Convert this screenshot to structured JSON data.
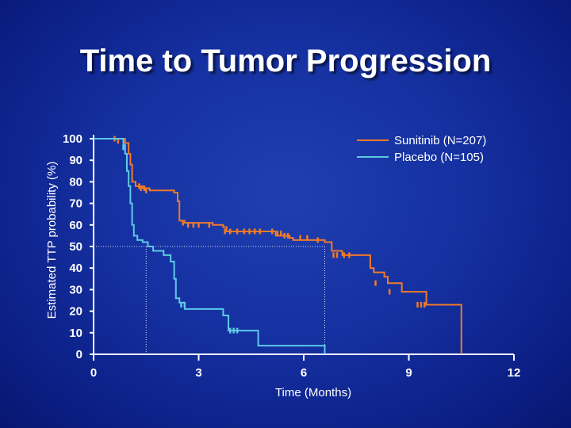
{
  "chart_data": {
    "type": "line",
    "title": "Time to Tumor Progression",
    "xlabel": "Time (Months)",
    "ylabel": "Estimated TTP probability (%)",
    "xlim": [
      0,
      12
    ],
    "ylim": [
      0,
      100
    ],
    "xticks": [
      0,
      3,
      6,
      9,
      12
    ],
    "yticks": [
      0,
      10,
      20,
      30,
      40,
      50,
      60,
      70,
      80,
      90,
      100
    ],
    "legend_position": "top-right",
    "median_lines": [
      {
        "series": "Placebo (N=105)",
        "x": 1.5,
        "y": 50
      },
      {
        "series": "Sunitinib (N=207)",
        "x": 6.6,
        "y": 50
      }
    ],
    "series": [
      {
        "name": "Sunitinib (N=207)",
        "color": "#f07a28",
        "step_points": [
          [
            0,
            100
          ],
          [
            0.6,
            100
          ],
          [
            0.9,
            98
          ],
          [
            1.0,
            93
          ],
          [
            1.05,
            88
          ],
          [
            1.1,
            80
          ],
          [
            1.2,
            78
          ],
          [
            1.4,
            77
          ],
          [
            1.6,
            76
          ],
          [
            2.2,
            76
          ],
          [
            2.3,
            75
          ],
          [
            2.4,
            71
          ],
          [
            2.45,
            62
          ],
          [
            2.6,
            61
          ],
          [
            3.4,
            60
          ],
          [
            3.7,
            59
          ],
          [
            3.8,
            57
          ],
          [
            4.0,
            57
          ],
          [
            5.2,
            55
          ],
          [
            5.6,
            54
          ],
          [
            5.7,
            53
          ],
          [
            6.5,
            53
          ],
          [
            6.6,
            52
          ],
          [
            6.8,
            48
          ],
          [
            7.1,
            46
          ],
          [
            7.8,
            46
          ],
          [
            7.9,
            40
          ],
          [
            8.0,
            38
          ],
          [
            8.3,
            36
          ],
          [
            8.4,
            33
          ],
          [
            8.8,
            29
          ],
          [
            9.2,
            29
          ],
          [
            9.5,
            23
          ],
          [
            10.1,
            23
          ],
          [
            10.5,
            23
          ],
          [
            10.5,
            0
          ]
        ],
        "censor_marks": [
          [
            0.6,
            100
          ],
          [
            0.7,
            99
          ],
          [
            1.3,
            78
          ],
          [
            1.35,
            77
          ],
          [
            1.45,
            77
          ],
          [
            1.5,
            76
          ],
          [
            2.55,
            61
          ],
          [
            2.7,
            60
          ],
          [
            2.85,
            60
          ],
          [
            3.0,
            60
          ],
          [
            3.3,
            60
          ],
          [
            3.75,
            57
          ],
          [
            3.9,
            57
          ],
          [
            4.1,
            57
          ],
          [
            4.3,
            57
          ],
          [
            4.45,
            57
          ],
          [
            4.6,
            57
          ],
          [
            4.75,
            57
          ],
          [
            5.1,
            57
          ],
          [
            5.25,
            56
          ],
          [
            5.35,
            56
          ],
          [
            5.45,
            55
          ],
          [
            5.55,
            55
          ],
          [
            5.9,
            54
          ],
          [
            6.1,
            54
          ],
          [
            6.4,
            53
          ],
          [
            6.85,
            46
          ],
          [
            6.95,
            46
          ],
          [
            7.15,
            46
          ],
          [
            7.3,
            46
          ],
          [
            8.05,
            33
          ],
          [
            8.45,
            29
          ],
          [
            9.25,
            23
          ],
          [
            9.35,
            23
          ],
          [
            9.45,
            23
          ]
        ]
      },
      {
        "name": "Placebo (N=105)",
        "color": "#5ec9e6",
        "step_points": [
          [
            0,
            100
          ],
          [
            0.8,
            100
          ],
          [
            0.85,
            97
          ],
          [
            0.9,
            93
          ],
          [
            0.95,
            85
          ],
          [
            1.0,
            78
          ],
          [
            1.05,
            70
          ],
          [
            1.1,
            60
          ],
          [
            1.15,
            55
          ],
          [
            1.25,
            53
          ],
          [
            1.4,
            52
          ],
          [
            1.55,
            50
          ],
          [
            1.7,
            48
          ],
          [
            2.0,
            46
          ],
          [
            2.2,
            43
          ],
          [
            2.3,
            35
          ],
          [
            2.35,
            26
          ],
          [
            2.45,
            24
          ],
          [
            2.6,
            21
          ],
          [
            3.6,
            21
          ],
          [
            3.7,
            18
          ],
          [
            3.85,
            11
          ],
          [
            4.3,
            11
          ],
          [
            4.7,
            4
          ],
          [
            6.6,
            4
          ],
          [
            6.6,
            0
          ]
        ],
        "censor_marks": [
          [
            0.85,
            96
          ],
          [
            2.5,
            23
          ],
          [
            2.6,
            23
          ],
          [
            3.9,
            11
          ],
          [
            4.0,
            11
          ],
          [
            4.1,
            11
          ]
        ]
      }
    ]
  }
}
